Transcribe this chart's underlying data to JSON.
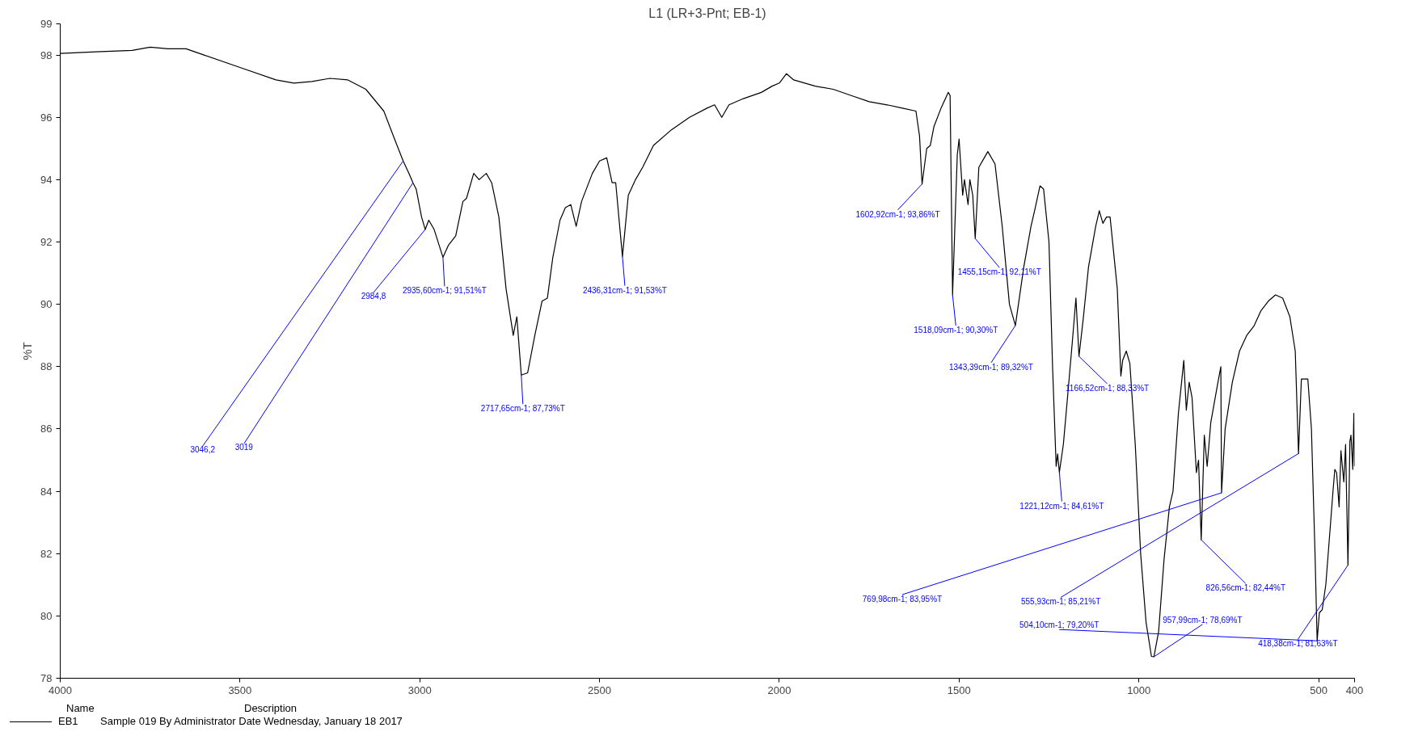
{
  "chart_data": {
    "type": "line",
    "title": "L1 (LR+3-Pnt; EB-1)",
    "ylabel": "%T",
    "xlim": [
      4000,
      400
    ],
    "ylim": [
      78,
      99
    ],
    "xticks": [
      4000,
      3500,
      3000,
      2500,
      2000,
      1500,
      1000,
      500,
      400
    ],
    "yticks": [
      78,
      80,
      82,
      84,
      86,
      88,
      90,
      92,
      94,
      96,
      98,
      99
    ],
    "grid": false,
    "legend": "bottom left",
    "line_style": "solid",
    "marker": "none",
    "series": [
      {
        "name": "EB1",
        "color": "#000000",
        "x": [
          4000,
          3900,
          3800,
          3750,
          3700,
          3650,
          3600,
          3500,
          3400,
          3350,
          3300,
          3250,
          3200,
          3150,
          3100,
          3070,
          3046.2,
          3030,
          3019,
          3010,
          2995,
          2984.8,
          2975,
          2960,
          2935.6,
          2920,
          2900,
          2880,
          2870,
          2850,
          2835,
          2815,
          2800,
          2780,
          2760,
          2740,
          2730,
          2717.65,
          2700,
          2680,
          2660,
          2645,
          2630,
          2610,
          2595,
          2580,
          2565,
          2550,
          2520,
          2500,
          2480,
          2465,
          2455,
          2436.31,
          2420,
          2400,
          2380,
          2350,
          2300,
          2250,
          2200,
          2180,
          2160,
          2140,
          2100,
          2050,
          2020,
          2000,
          1980,
          1960,
          1900,
          1850,
          1800,
          1750,
          1700,
          1660,
          1620,
          1610,
          1602.92,
          1590,
          1580,
          1570,
          1550,
          1530,
          1525,
          1518.09,
          1505,
          1500,
          1490,
          1485,
          1475,
          1470,
          1462,
          1455.15,
          1445,
          1430,
          1420,
          1400,
          1380,
          1360,
          1343.39,
          1320,
          1300,
          1290,
          1275,
          1265,
          1250,
          1240,
          1230,
          1226,
          1221.12,
          1210,
          1200,
          1185,
          1175,
          1166.52,
          1155,
          1140,
          1120,
          1110,
          1100,
          1090,
          1080,
          1060,
          1050,
          1045,
          1035,
          1025,
          1010,
          995,
          980,
          965,
          957.99,
          945,
          930,
          915,
          905,
          890,
          875,
          868,
          860,
          852,
          840,
          834,
          826.56,
          818,
          810,
          800,
          780,
          772,
          769.98,
          760,
          740,
          720,
          700,
          680,
          660,
          640,
          620,
          600,
          580,
          565,
          555.93,
          548,
          540,
          530,
          520,
          510,
          504.1,
          498,
          490,
          480,
          470,
          460,
          455,
          450,
          443,
          438,
          430,
          425,
          418.38,
          413,
          410,
          405,
          402,
          400
        ],
        "values": [
          98.05,
          98.1,
          98.15,
          98.25,
          98.2,
          98.2,
          98.0,
          97.6,
          97.2,
          97.1,
          97.15,
          97.25,
          97.2,
          96.9,
          96.2,
          95.3,
          94.6,
          94.2,
          93.9,
          93.7,
          92.8,
          92.4,
          92.7,
          92.4,
          91.51,
          91.9,
          92.2,
          93.3,
          93.4,
          94.2,
          94.0,
          94.2,
          93.9,
          92.8,
          90.5,
          89.0,
          89.6,
          87.73,
          87.8,
          89.0,
          90.1,
          90.2,
          91.5,
          92.7,
          93.1,
          93.2,
          92.5,
          93.3,
          94.2,
          94.6,
          94.7,
          93.9,
          93.9,
          91.53,
          93.5,
          94.0,
          94.4,
          95.1,
          95.6,
          96.0,
          96.3,
          96.4,
          96.0,
          96.4,
          96.6,
          96.8,
          97.0,
          97.1,
          97.4,
          97.2,
          97.0,
          96.9,
          96.7,
          96.5,
          96.4,
          96.3,
          96.2,
          95.4,
          93.86,
          95.0,
          95.1,
          95.7,
          96.3,
          96.8,
          96.7,
          90.3,
          94.8,
          95.3,
          93.5,
          94.0,
          93.2,
          94.0,
          93.5,
          92.11,
          94.4,
          94.7,
          94.9,
          94.5,
          92.5,
          90.0,
          89.32,
          91.2,
          92.5,
          93.0,
          93.8,
          93.7,
          92.0,
          88.0,
          84.8,
          85.2,
          84.61,
          85.5,
          86.8,
          88.8,
          90.2,
          88.33,
          89.5,
          91.2,
          92.5,
          93.0,
          92.6,
          92.8,
          92.8,
          90.5,
          87.7,
          88.2,
          88.5,
          88.1,
          85.5,
          82.0,
          79.8,
          78.7,
          78.69,
          79.5,
          81.8,
          83.5,
          84.0,
          86.5,
          88.2,
          86.6,
          87.5,
          87.0,
          84.6,
          85.0,
          82.44,
          85.8,
          84.8,
          86.2,
          87.5,
          88.0,
          83.95,
          86.0,
          87.5,
          88.5,
          89.0,
          89.3,
          89.8,
          90.1,
          90.3,
          90.2,
          89.6,
          88.5,
          85.21,
          87.6,
          87.6,
          87.6,
          86.0,
          82.0,
          79.2,
          80.1,
          80.2,
          81.0,
          82.5,
          84.0,
          84.7,
          84.6,
          83.5,
          85.3,
          84.3,
          85.5,
          81.63,
          85.6,
          85.8,
          84.7,
          86.5,
          84.8
        ]
      }
    ],
    "annotations": [
      {
        "text": "3046,2",
        "x": 3046.2,
        "y": 94.6
      },
      {
        "text": "3019",
        "x": 3019,
        "y": 93.9
      },
      {
        "text": "2984,8",
        "x": 2984.8,
        "y": 92.4
      },
      {
        "text": "2935,60cm-1; 91,51%T",
        "x": 2935.6,
        "y": 91.51
      },
      {
        "text": "2717,65cm-1; 87,73%T",
        "x": 2717.65,
        "y": 87.73
      },
      {
        "text": "2436,31cm-1; 91,53%T",
        "x": 2436.31,
        "y": 91.53
      },
      {
        "text": "1602,92cm-1; 93,86%T",
        "x": 1602.92,
        "y": 93.86
      },
      {
        "text": "1518,09cm-1; 90,30%T",
        "x": 1518.09,
        "y": 90.3
      },
      {
        "text": "1455,15cm-1; 92,11%T",
        "x": 1455.15,
        "y": 92.11
      },
      {
        "text": "1343,39cm-1; 89,32%T",
        "x": 1343.39,
        "y": 89.32
      },
      {
        "text": "1166,52cm-1; 88,33%T",
        "x": 1166.52,
        "y": 88.33
      },
      {
        "text": "1221,12cm-1; 84,61%T",
        "x": 1221.12,
        "y": 84.61
      },
      {
        "text": "769,98cm-1; 83,95%T",
        "x": 769.98,
        "y": 83.95
      },
      {
        "text": "826,56cm-1; 82,44%T",
        "x": 826.56,
        "y": 82.44
      },
      {
        "text": "555,93cm-1; 85,21%T",
        "x": 555.93,
        "y": 85.21
      },
      {
        "text": "504,10cm-1; 79,20%T",
        "x": 504.1,
        "y": 79.2
      },
      {
        "text": "957,99cm-1; 78,69%T",
        "x": 957.99,
        "y": 78.69
      },
      {
        "text": "418,38cm-1; 81,63%T",
        "x": 418.38,
        "y": 81.63
      },
      "Name",
      "Description",
      "Sample 019 By Administrator Date Wednesday, January 18 2017"
    ]
  }
}
